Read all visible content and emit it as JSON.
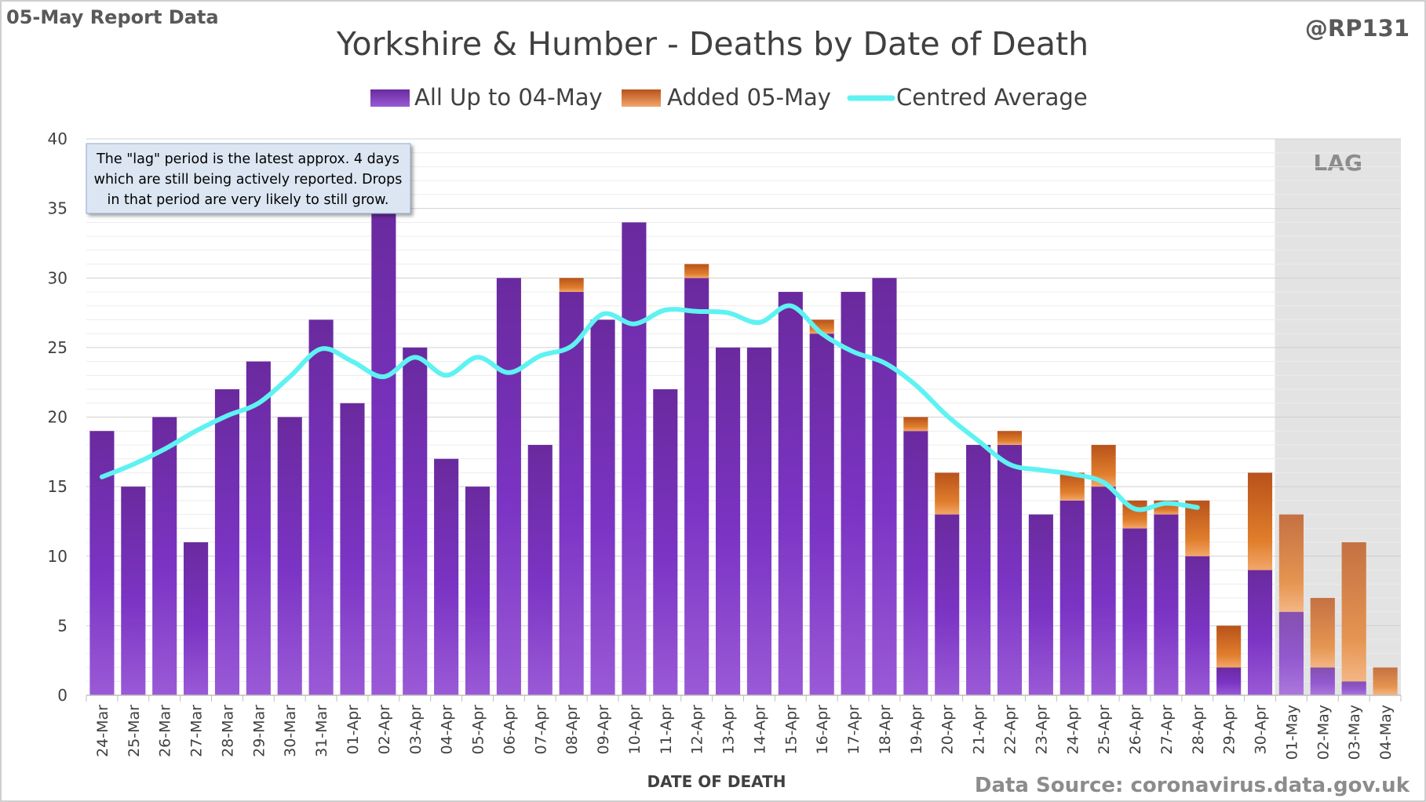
{
  "report_tag": "05-May Report Data",
  "handle": "@RP131",
  "source": "Data Source: coronavirus.data.gov.uk",
  "lag_label": "LAG",
  "annotation": [
    "The \"lag\" period is the latest approx. 4 days",
    "which are still being actively reported.  Drops",
    "in that period are very likely to still grow."
  ],
  "colors": {
    "existing": "#7a30b8",
    "added": "#d8701f",
    "average": "#5ff2f2",
    "lag_shade": "#e3e3e3"
  },
  "chart_data": {
    "type": "bar",
    "stacked": true,
    "title": "Yorkshire & Humber - Deaths by Date of Death",
    "xlabel": "DATE OF DEATH",
    "ylabel": "",
    "ylim": [
      0,
      40
    ],
    "yticks": [
      0,
      5,
      10,
      15,
      20,
      25,
      30,
      35,
      40
    ],
    "grid": true,
    "legend_position": "top",
    "categories": [
      "24-Mar",
      "25-Mar",
      "26-Mar",
      "27-Mar",
      "28-Mar",
      "29-Mar",
      "30-Mar",
      "31-Mar",
      "01-Apr",
      "02-Apr",
      "03-Apr",
      "04-Apr",
      "05-Apr",
      "06-Apr",
      "07-Apr",
      "08-Apr",
      "09-Apr",
      "10-Apr",
      "11-Apr",
      "12-Apr",
      "13-Apr",
      "14-Apr",
      "15-Apr",
      "16-Apr",
      "17-Apr",
      "18-Apr",
      "19-Apr",
      "20-Apr",
      "21-Apr",
      "22-Apr",
      "23-Apr",
      "24-Apr",
      "25-Apr",
      "26-Apr",
      "27-Apr",
      "28-Apr",
      "29-Apr",
      "30-Apr",
      "01-May",
      "02-May",
      "03-May",
      "04-May"
    ],
    "series": [
      {
        "name": "All Up to 04-May",
        "type": "bar",
        "values": [
          19,
          15,
          20,
          11,
          22,
          24,
          20,
          27,
          21,
          35,
          25,
          17,
          15,
          30,
          18,
          29,
          27,
          34,
          22,
          30,
          25,
          25,
          29,
          26,
          29,
          30,
          19,
          13,
          18,
          18,
          13,
          14,
          15,
          12,
          13,
          10,
          2,
          9,
          6,
          2,
          1,
          0
        ]
      },
      {
        "name": "Added 05-May",
        "type": "bar",
        "values": [
          0,
          0,
          0,
          0,
          0,
          0,
          0,
          0,
          0,
          0,
          0,
          0,
          0,
          0,
          0,
          1,
          0,
          0,
          0,
          1,
          0,
          0,
          0,
          1,
          0,
          0,
          1,
          3,
          0,
          1,
          0,
          2,
          3,
          2,
          1,
          4,
          3,
          7,
          7,
          5,
          10,
          2
        ]
      },
      {
        "name": "Centred Average",
        "type": "line",
        "values": [
          15.7,
          16.6,
          17.7,
          19.0,
          20.1,
          21.0,
          22.9,
          24.9,
          24.0,
          22.9,
          24.3,
          23.0,
          24.3,
          23.2,
          24.4,
          25.1,
          27.4,
          26.7,
          27.7,
          27.6,
          27.5,
          26.8,
          28.0,
          26.0,
          24.7,
          23.9,
          22.3,
          20.1,
          18.3,
          16.6,
          16.2,
          15.9,
          15.3,
          13.4,
          13.8,
          13.5,
          null,
          null,
          null,
          null,
          null,
          null
        ]
      }
    ],
    "lag_categories": [
      "01-May",
      "02-May",
      "03-May",
      "04-May"
    ]
  }
}
